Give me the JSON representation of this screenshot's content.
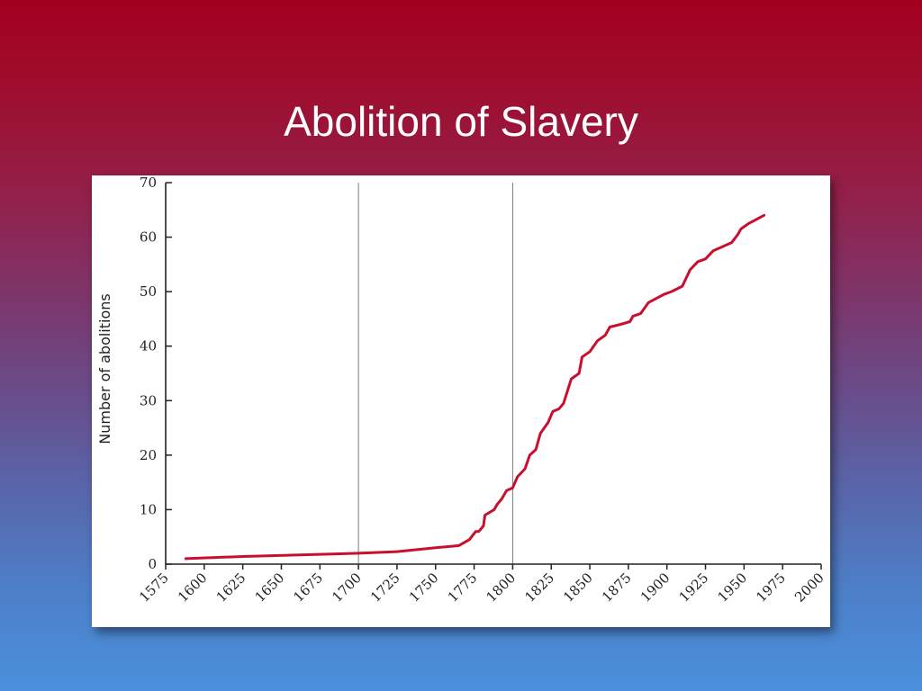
{
  "slide": {
    "title": "Abolition of Slavery"
  },
  "colors": {
    "series_line": "#c8102e",
    "axis": "#222222",
    "reference_line": "#7a7a7a",
    "card_background": "#ffffff"
  },
  "chart_data": {
    "type": "line",
    "title": "",
    "xlabel": "",
    "ylabel": "Number of abolitions",
    "xlim": [
      1575,
      2000
    ],
    "ylim": [
      0,
      70
    ],
    "x_ticks": [
      "1575",
      "1600",
      "1625",
      "1650",
      "1675",
      "1700",
      "1725",
      "1750",
      "1775",
      "1800",
      "1825",
      "1850",
      "1875",
      "1900",
      "1925",
      "1950",
      "1975",
      "2000"
    ],
    "y_ticks": [
      "0",
      "10",
      "20",
      "30",
      "40",
      "50",
      "60",
      "70"
    ],
    "reference_lines_x": [
      1700,
      1800
    ],
    "grid": false,
    "legend": "none",
    "series": [
      {
        "values": [
          [
            1588,
            1
          ],
          [
            1625,
            1.4
          ],
          [
            1675,
            1.8
          ],
          [
            1700,
            2
          ],
          [
            1725,
            2.3
          ],
          [
            1750,
            3
          ],
          [
            1765,
            3.4
          ],
          [
            1772,
            4.5
          ],
          [
            1776,
            6
          ],
          [
            1778,
            6
          ],
          [
            1781,
            7
          ],
          [
            1782,
            9
          ],
          [
            1788,
            10
          ],
          [
            1790,
            11
          ],
          [
            1793,
            12
          ],
          [
            1796,
            13.5
          ],
          [
            1800,
            14
          ],
          [
            1803,
            16
          ],
          [
            1808,
            17.5
          ],
          [
            1811,
            20
          ],
          [
            1815,
            21
          ],
          [
            1818,
            24
          ],
          [
            1823,
            26
          ],
          [
            1826,
            28
          ],
          [
            1830,
            28.5
          ],
          [
            1833,
            29.5
          ],
          [
            1838,
            34
          ],
          [
            1843,
            35
          ],
          [
            1845,
            38
          ],
          [
            1850,
            39
          ],
          [
            1855,
            41
          ],
          [
            1860,
            42
          ],
          [
            1863,
            43.5
          ],
          [
            1870,
            44
          ],
          [
            1876,
            44.5
          ],
          [
            1878,
            45.5
          ],
          [
            1883,
            46
          ],
          [
            1888,
            48
          ],
          [
            1898,
            49.5
          ],
          [
            1903,
            50
          ],
          [
            1910,
            51
          ],
          [
            1915,
            54
          ],
          [
            1920,
            55.5
          ],
          [
            1925,
            56
          ],
          [
            1930,
            57.5
          ],
          [
            1942,
            59
          ],
          [
            1946,
            60.5
          ],
          [
            1948,
            61.5
          ],
          [
            1953,
            62.5
          ],
          [
            1963,
            64
          ]
        ]
      }
    ]
  }
}
